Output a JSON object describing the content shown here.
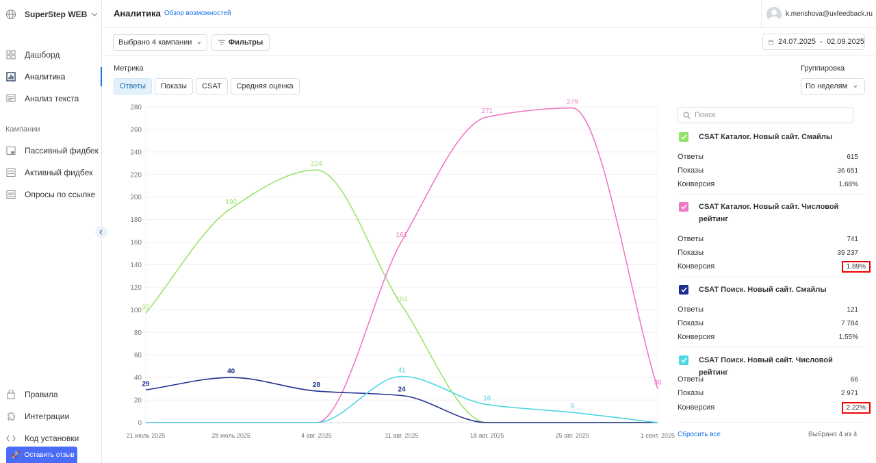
{
  "sidebar": {
    "brand": "SuperStep WEB",
    "nav": [
      {
        "label": "Дашборд",
        "icon": "dashboard-icon"
      },
      {
        "label": "Аналитика",
        "icon": "analytics-icon",
        "active": true
      },
      {
        "label": "Анализ текста",
        "icon": "text-analysis-icon"
      }
    ],
    "campaigns_label": "Кампании",
    "campaigns": [
      {
        "label": "Пассивный фидбек",
        "icon": "passive-feedback-icon"
      },
      {
        "label": "Активный фидбек",
        "icon": "active-feedback-icon"
      },
      {
        "label": "Опросы по ссылке",
        "icon": "link-survey-icon"
      }
    ],
    "bottom": [
      {
        "label": "Правила",
        "icon": "rules-icon"
      },
      {
        "label": "Интеграции",
        "icon": "integrations-icon"
      },
      {
        "label": "Код установки",
        "icon": "code-icon"
      }
    ],
    "feedback_button": "Оставить отзыв"
  },
  "header": {
    "title": "Аналитика",
    "overview_link": "Обзор возможностей",
    "user_email": "k.menshova@uxfeedback.ru"
  },
  "toolbar": {
    "campaign_select": "Выбрано 4 кампании",
    "filters": "Фильтры",
    "date_range": "24.07.2025  -  02.09.2025"
  },
  "metric": {
    "label": "Метрика",
    "tabs": [
      "Ответы",
      "Показы",
      "CSAT",
      "Средняя оценка"
    ],
    "active_tab": "Ответы"
  },
  "grouping": {
    "label": "Группировка",
    "value": "По неделям"
  },
  "chart_data": {
    "type": "line",
    "categories": [
      "21 июль 2025",
      "28 июль 2025",
      "4 авг. 2025",
      "11 авг. 2025",
      "18 авг. 2025",
      "25 авг. 2025",
      "1 сент. 2025"
    ],
    "yticks": [
      0,
      20,
      40,
      60,
      80,
      100,
      120,
      140,
      160,
      180,
      200,
      220,
      240,
      260,
      280
    ],
    "ylim": [
      0,
      280
    ],
    "grid": true,
    "series": [
      {
        "name": "CSAT Каталог. Новый сайт. Смайлы",
        "color": "#9be36e",
        "values": [
          97,
          190,
          224,
          104,
          0,
          0,
          0
        ]
      },
      {
        "name": "CSAT Каталог. Новый сайт. Числовой рейтинг",
        "color": "#ef78c6",
        "values": [
          0,
          0,
          0,
          161,
          271,
          279,
          30
        ]
      },
      {
        "name": "CSAT Поиск. Новый сайт. Смайлы",
        "color": "#1f2f8f",
        "values": [
          29,
          40,
          28,
          24,
          0,
          0,
          0
        ]
      },
      {
        "name": "CSAT Поиск. Новый сайт. Числовой рейтинг",
        "color": "#4fd6e3",
        "values": [
          0,
          0,
          0,
          41,
          16,
          9,
          0
        ]
      }
    ]
  },
  "panel": {
    "search_placeholder": "Поиск",
    "campaigns": [
      {
        "title": "CSAT Каталог. Новый сайт. Смайлы",
        "color": "#8fe26b",
        "stats": [
          {
            "label": "Ответы",
            "value": "615"
          },
          {
            "label": "Показы",
            "value": "36 651"
          },
          {
            "label": "Конверсия",
            "value": "1.68%"
          }
        ]
      },
      {
        "title": "CSAT Каталог. Новый сайт. Числовой рейтинг",
        "color": "#ef78c6",
        "stats": [
          {
            "label": "Ответы",
            "value": "741"
          },
          {
            "label": "Показы",
            "value": "39 237"
          },
          {
            "label": "Конверсия",
            "value": "1.89%"
          }
        ]
      },
      {
        "title": "CSAT Поиск. Новый сайт. Смайлы",
        "color": "#1f2f8f",
        "stats": [
          {
            "label": "Ответы",
            "value": "121"
          },
          {
            "label": "Показы",
            "value": "7 784"
          },
          {
            "label": "Конверсия",
            "value": "1.55%"
          }
        ]
      },
      {
        "title": "CSAT Поиск. Новый сайт. Числовой рейтинг",
        "color": "#4fd6e3",
        "stats": [
          {
            "label": "Ответы",
            "value": "66"
          },
          {
            "label": "Показы",
            "value": "2 971"
          },
          {
            "label": "Конверсия",
            "value": "2.22%"
          }
        ]
      }
    ],
    "reset": "Сбросить все",
    "selected_count": "Выбрано 4 из 4"
  }
}
